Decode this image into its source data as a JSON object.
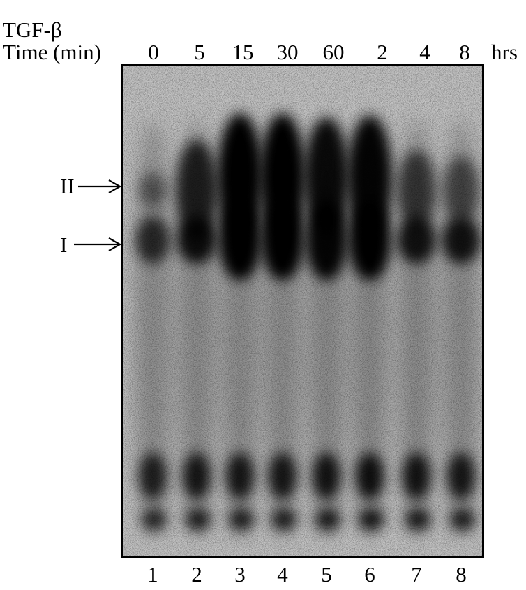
{
  "header": {
    "treatment_label": "TGF-β",
    "time_label": "Time (min)",
    "units_suffix": "hrs"
  },
  "lanes": [
    {
      "number": "1",
      "time": "0",
      "band_I": 0.55,
      "band_II": 0.2,
      "bottom": 0.7
    },
    {
      "number": "2",
      "time": "5",
      "band_I": 0.85,
      "band_II": 0.7,
      "bottom": 0.8
    },
    {
      "number": "3",
      "time": "15",
      "band_I": 1.0,
      "band_II": 1.0,
      "bottom": 0.8
    },
    {
      "number": "4",
      "time": "30",
      "band_I": 1.0,
      "band_II": 1.0,
      "bottom": 0.8
    },
    {
      "number": "5",
      "time": "60",
      "band_I": 0.95,
      "band_II": 0.9,
      "bottom": 0.85
    },
    {
      "number": "6",
      "time": "2",
      "band_I": 1.0,
      "band_II": 0.95,
      "bottom": 0.9
    },
    {
      "number": "7",
      "time": "4",
      "band_I": 0.8,
      "band_II": 0.45,
      "bottom": 0.85
    },
    {
      "number": "8",
      "time": "8",
      "band_I": 0.8,
      "band_II": 0.3,
      "bottom": 0.8
    }
  ],
  "bands": {
    "upper_label": "II",
    "lower_label": "I"
  },
  "colors": {
    "band": "#050505",
    "background": "#bdbdbd",
    "border": "#000000"
  }
}
